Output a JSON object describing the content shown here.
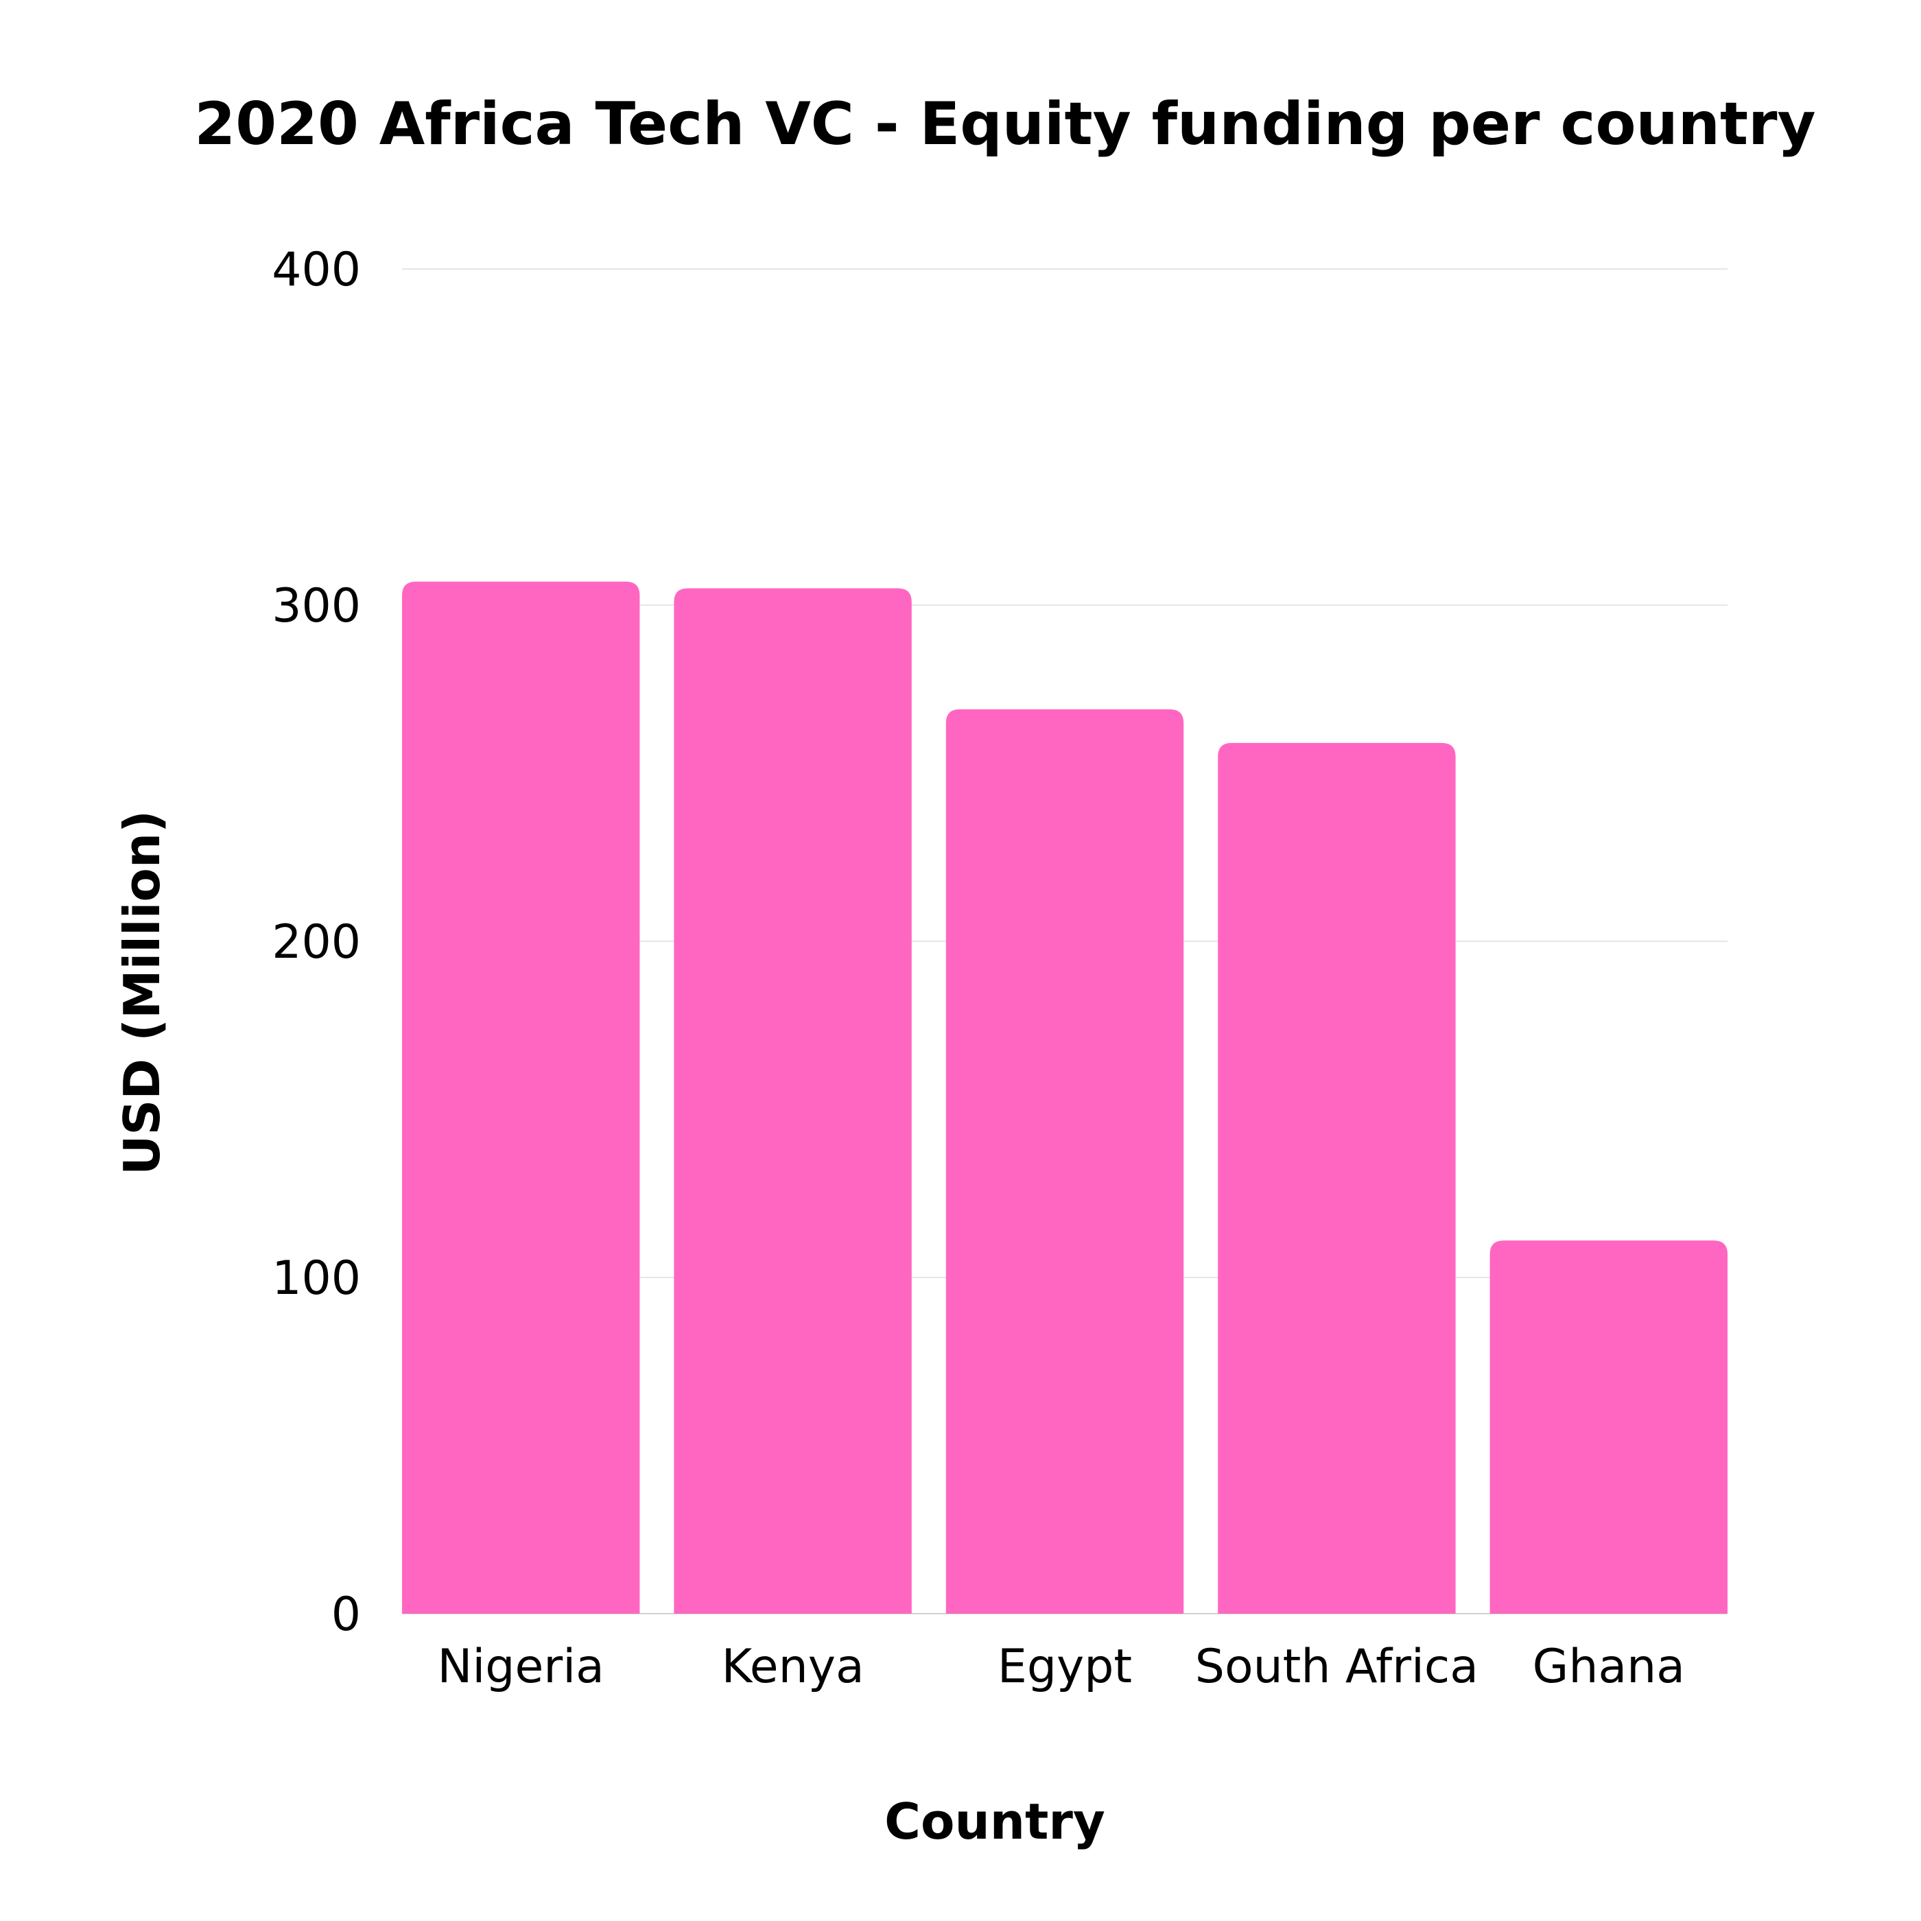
{
  "chart_data": {
    "type": "bar",
    "title": "2020 Africa Tech VC - Equity funding per country",
    "xlabel": "Country",
    "ylabel": "USD (Million)",
    "categories": [
      "Nigeria",
      "Kenya",
      "Egypt",
      "South Africa",
      "Ghana"
    ],
    "values": [
      307,
      305,
      269,
      259,
      111
    ],
    "ylim": [
      0,
      400
    ],
    "yticks": [
      0,
      100,
      200,
      300,
      400
    ],
    "grid": true,
    "legend": "none",
    "bar_color": "#ff66c2",
    "grid_color": "#e6e6e6"
  }
}
